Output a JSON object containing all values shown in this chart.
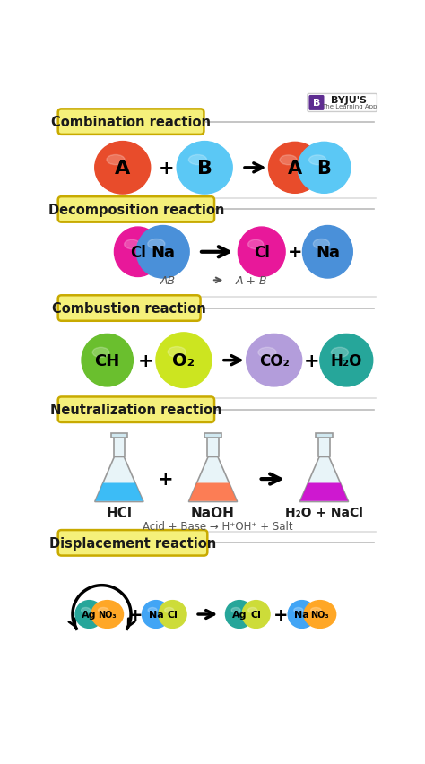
{
  "bg_color": "#ffffff",
  "section_label_bg": "#f5f07a",
  "section_label_border": "#c8aa00",
  "sections": [
    "Combination reaction",
    "Decomposition reaction",
    "Combustion reaction",
    "Neutralization reaction",
    "Displacement reaction"
  ],
  "combination": {
    "A_color": "#e84c2b",
    "B_color": "#5bc8f5",
    "label_A": "A",
    "label_B": "B"
  },
  "decomposition": {
    "Cl_color": "#e8189a",
    "Na_color": "#4a90d9",
    "label_Cl": "Cl",
    "label_Na": "Na",
    "sub_text": "AB  →  A + B"
  },
  "combustion": {
    "CH_color": "#6abf2e",
    "O2_color": "#cce520",
    "CO2_color": "#b39ddb",
    "H2O_color": "#26a69a",
    "label_CH": "CH",
    "label_O2": "O₂",
    "label_CO2": "CO₂",
    "label_H2O": "H₂O"
  },
  "neutralization": {
    "flask1_liquid": "#29b6f6",
    "flask2_liquid": "#ff7043",
    "flask3_liquid": "#cc00cc",
    "label1": "HCl",
    "label2": "NaOH",
    "label3": "H₂O + NaCl",
    "sub_text": "Acid + Base → H⁺OH⁺ + Salt"
  },
  "displacement": {
    "Ag_color": "#26a69a",
    "NO3_color": "#ffa726",
    "Na_color": "#42a5f5",
    "Cl_color": "#cddc39",
    "label_Ag": "Ag",
    "label_NO3": "NO₃",
    "label_Na": "Na",
    "label_Cl": "Cl"
  }
}
